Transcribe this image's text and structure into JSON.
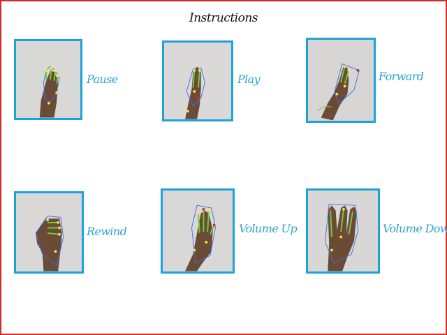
{
  "window": {
    "title": "Instructions"
  },
  "gestures": [
    {
      "id": "pause",
      "label": "Pause",
      "icon": "open-palm-hand-icon"
    },
    {
      "id": "play",
      "label": "Play",
      "icon": "two-finger-hand-icon"
    },
    {
      "id": "forward",
      "label": "Forward",
      "icon": "point-right-hand-icon"
    },
    {
      "id": "rewind",
      "label": "Rewind",
      "icon": "thumb-left-hand-icon"
    },
    {
      "id": "volume-up",
      "label": "Volume Up",
      "icon": "open-palm-up-hand-icon"
    },
    {
      "id": "volume-down",
      "label": "Volume Down",
      "icon": "three-finger-hand-icon"
    }
  ],
  "colors": {
    "frame_border": "#d62828",
    "card_border": "#1ba3db",
    "label_text": "#2aa6cf",
    "landmark": "#ffe14a",
    "skeleton": "#6fd13a",
    "hull": "#3a6ff0"
  }
}
